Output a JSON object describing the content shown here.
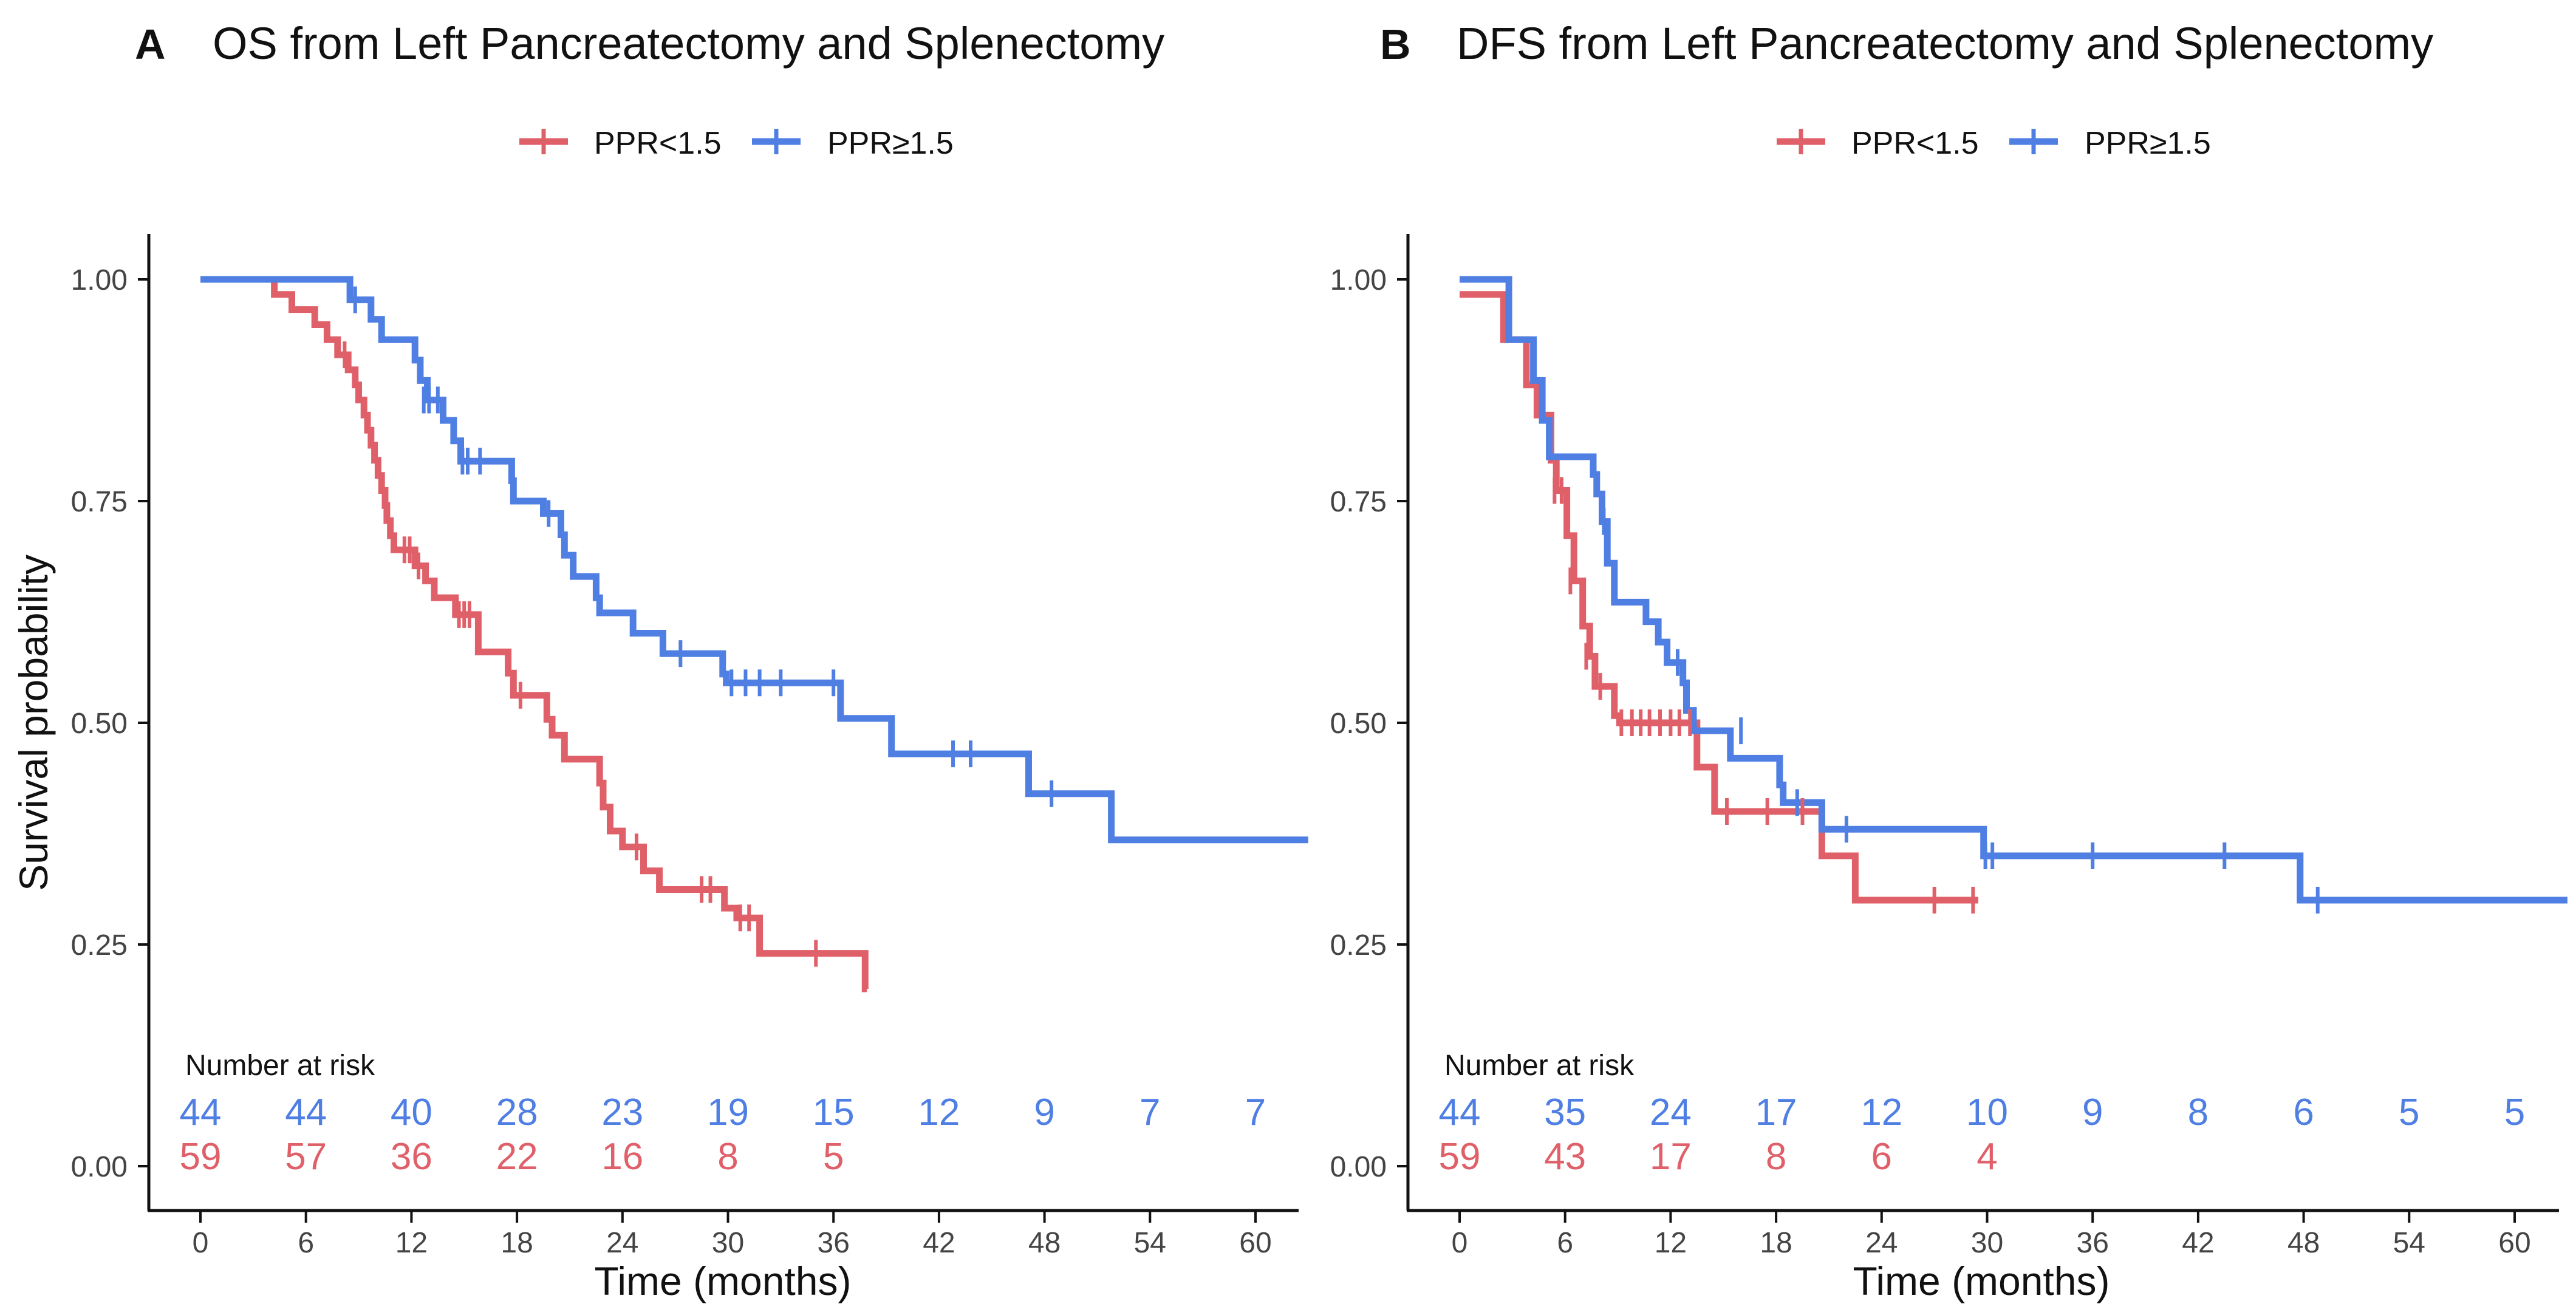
{
  "colors": {
    "low": "#E0606A",
    "high": "#4F7FE3",
    "axis": "#111111",
    "text": "#111111",
    "tick": "#444444"
  },
  "chart_data": [
    {
      "type": "line",
      "panel": "A",
      "title": "OS from Left Pancreatectomy and Splenectomy",
      "xlabel": "Time (months)",
      "ylabel": "Survival probability",
      "xlim": [
        -3,
        63
      ],
      "ylim": [
        0,
        1
      ],
      "xticks": [
        "0",
        "6",
        "12",
        "18",
        "24",
        "30",
        "36",
        "42",
        "48",
        "54",
        "60"
      ],
      "yticks": [
        "0.00",
        "0.25",
        "0.50",
        "0.75",
        "1.00"
      ],
      "legend_position": "top-center",
      "risk_title": "Number at risk",
      "series": [
        {
          "name": "PPR<1.5",
          "color_key": "low",
          "steps": [
            [
              0,
              1.0
            ],
            [
              4.2,
              0.983
            ],
            [
              5.2,
              0.966
            ],
            [
              6.5,
              0.949
            ],
            [
              7.2,
              0.932
            ],
            [
              7.8,
              0.915
            ],
            [
              8.4,
              0.898
            ],
            [
              8.8,
              0.881
            ],
            [
              9.0,
              0.864
            ],
            [
              9.3,
              0.847
            ],
            [
              9.5,
              0.83
            ],
            [
              9.7,
              0.813
            ],
            [
              9.9,
              0.796
            ],
            [
              10.1,
              0.779
            ],
            [
              10.3,
              0.762
            ],
            [
              10.5,
              0.745
            ],
            [
              10.6,
              0.728
            ],
            [
              10.8,
              0.711
            ],
            [
              11.0,
              0.695
            ],
            [
              12.2,
              0.677
            ],
            [
              12.8,
              0.66
            ],
            [
              13.3,
              0.641
            ],
            [
              14.5,
              0.622
            ],
            [
              15.8,
              0.58
            ],
            [
              17.5,
              0.556
            ],
            [
              17.8,
              0.531
            ],
            [
              19.7,
              0.504
            ],
            [
              20.0,
              0.486
            ],
            [
              20.7,
              0.459
            ],
            [
              22.7,
              0.432
            ],
            [
              22.9,
              0.405
            ],
            [
              23.3,
              0.378
            ],
            [
              24.0,
              0.36
            ],
            [
              25.2,
              0.333
            ],
            [
              26.1,
              0.312
            ],
            [
              29.8,
              0.291
            ],
            [
              30.5,
              0.28
            ],
            [
              31.8,
              0.24
            ],
            [
              37.8,
              0.2
            ]
          ],
          "end_x": 37.9,
          "censors": [
            [
              8.2,
              0.915
            ],
            [
              11.6,
              0.695
            ],
            [
              11.9,
              0.695
            ],
            [
              12.4,
              0.677
            ],
            [
              14.7,
              0.622
            ],
            [
              15.0,
              0.622
            ],
            [
              15.3,
              0.622
            ],
            [
              18.2,
              0.531
            ],
            [
              24.8,
              0.36
            ],
            [
              28.5,
              0.312
            ],
            [
              29.0,
              0.312
            ],
            [
              30.7,
              0.28
            ],
            [
              31.2,
              0.28
            ],
            [
              35.0,
              0.24
            ]
          ],
          "at_risk": [
            {
              "time": "0",
              "n": "59"
            },
            {
              "time": "6",
              "n": "57"
            },
            {
              "time": "12",
              "n": "36"
            },
            {
              "time": "18",
              "n": "22"
            },
            {
              "time": "24",
              "n": "16"
            },
            {
              "time": "30",
              "n": "8"
            },
            {
              "time": "36",
              "n": "5"
            }
          ]
        },
        {
          "name": "PPR≥1.5",
          "color_key": "high",
          "steps": [
            [
              0,
              1.0
            ],
            [
              8.5,
              0.977
            ],
            [
              9.7,
              0.955
            ],
            [
              10.3,
              0.932
            ],
            [
              12.2,
              0.909
            ],
            [
              12.5,
              0.886
            ],
            [
              12.9,
              0.864
            ],
            [
              13.8,
              0.841
            ],
            [
              14.4,
              0.818
            ],
            [
              14.8,
              0.795
            ],
            [
              17.7,
              0.773
            ],
            [
              17.8,
              0.75
            ],
            [
              19.5,
              0.736
            ],
            [
              20.5,
              0.712
            ],
            [
              20.7,
              0.689
            ],
            [
              21.2,
              0.665
            ],
            [
              22.5,
              0.641
            ],
            [
              22.7,
              0.624
            ],
            [
              24.6,
              0.601
            ],
            [
              26.3,
              0.578
            ],
            [
              29.7,
              0.555
            ],
            [
              29.9,
              0.545
            ],
            [
              36.4,
              0.505
            ],
            [
              39.3,
              0.465
            ],
            [
              47.1,
              0.42
            ],
            [
              51.8,
              0.368
            ]
          ],
          "end_x": 63,
          "censors": [
            [
              8.8,
              0.977
            ],
            [
              12.7,
              0.864
            ],
            [
              13.0,
              0.864
            ],
            [
              13.5,
              0.864
            ],
            [
              14.9,
              0.795
            ],
            [
              15.2,
              0.795
            ],
            [
              15.9,
              0.795
            ],
            [
              19.8,
              0.736
            ],
            [
              27.3,
              0.578
            ],
            [
              30.2,
              0.545
            ],
            [
              31.0,
              0.545
            ],
            [
              31.8,
              0.545
            ],
            [
              33.0,
              0.545
            ],
            [
              36.0,
              0.545
            ],
            [
              42.8,
              0.465
            ],
            [
              43.8,
              0.465
            ],
            [
              48.4,
              0.42
            ]
          ],
          "at_risk": [
            {
              "time": "0",
              "n": "44"
            },
            {
              "time": "6",
              "n": "44"
            },
            {
              "time": "12",
              "n": "40"
            },
            {
              "time": "18",
              "n": "28"
            },
            {
              "time": "24",
              "n": "23"
            },
            {
              "time": "30",
              "n": "19"
            },
            {
              "time": "36",
              "n": "15"
            },
            {
              "time": "42",
              "n": "12"
            },
            {
              "time": "48",
              "n": "9"
            },
            {
              "time": "54",
              "n": "7"
            },
            {
              "time": "60",
              "n": "7"
            }
          ]
        }
      ]
    },
    {
      "type": "line",
      "panel": "B",
      "title": "DFS from Left Pancreatectomy and Splenectomy",
      "xlabel": "Time (months)",
      "ylabel": "",
      "xlim": [
        -3,
        63
      ],
      "ylim": [
        0,
        1
      ],
      "xticks": [
        "0",
        "6",
        "12",
        "18",
        "24",
        "30",
        "36",
        "42",
        "48",
        "54",
        "60"
      ],
      "yticks": [
        "0.00",
        "0.25",
        "0.50",
        "0.75",
        "1.00"
      ],
      "legend_position": "top-center",
      "risk_title": "Number at risk",
      "series": [
        {
          "name": "PPR<1.5",
          "color_key": "low",
          "steps": [
            [
              0,
              0.983
            ],
            [
              2.5,
              0.932
            ],
            [
              3.8,
              0.881
            ],
            [
              4.4,
              0.847
            ],
            [
              5.2,
              0.796
            ],
            [
              5.5,
              0.762
            ],
            [
              6.1,
              0.711
            ],
            [
              6.5,
              0.66
            ],
            [
              7.0,
              0.609
            ],
            [
              7.4,
              0.575
            ],
            [
              7.7,
              0.541
            ],
            [
              8.8,
              0.508
            ],
            [
              9.1,
              0.5
            ],
            [
              13.5,
              0.45
            ],
            [
              14.5,
              0.4
            ],
            [
              20.6,
              0.35
            ],
            [
              22.5,
              0.3
            ]
          ],
          "end_x": 29.5,
          "censors": [
            [
              5.4,
              0.762
            ],
            [
              5.8,
              0.762
            ],
            [
              6.3,
              0.66
            ],
            [
              7.2,
              0.575
            ],
            [
              8.0,
              0.541
            ],
            [
              9.2,
              0.5
            ],
            [
              9.8,
              0.5
            ],
            [
              10.3,
              0.5
            ],
            [
              10.8,
              0.5
            ],
            [
              11.4,
              0.5
            ],
            [
              12.0,
              0.5
            ],
            [
              12.5,
              0.5
            ],
            [
              13.1,
              0.5
            ],
            [
              15.2,
              0.4
            ],
            [
              17.5,
              0.4
            ],
            [
              19.5,
              0.4
            ],
            [
              27.0,
              0.3
            ],
            [
              29.2,
              0.3
            ]
          ],
          "at_risk": [
            {
              "time": "0",
              "n": "59"
            },
            {
              "time": "6",
              "n": "43"
            },
            {
              "time": "12",
              "n": "17"
            },
            {
              "time": "18",
              "n": "8"
            },
            {
              "time": "24",
              "n": "6"
            },
            {
              "time": "30",
              "n": "4"
            }
          ]
        },
        {
          "name": "PPR≥1.5",
          "color_key": "high",
          "steps": [
            [
              0,
              1.0
            ],
            [
              2.8,
              0.932
            ],
            [
              4.2,
              0.886
            ],
            [
              4.7,
              0.841
            ],
            [
              5.1,
              0.8
            ],
            [
              7.6,
              0.78
            ],
            [
              7.8,
              0.758
            ],
            [
              8.1,
              0.727
            ],
            [
              8.4,
              0.68
            ],
            [
              8.8,
              0.636
            ],
            [
              10.6,
              0.614
            ],
            [
              11.3,
              0.591
            ],
            [
              11.8,
              0.568
            ],
            [
              12.7,
              0.545
            ],
            [
              12.9,
              0.514
            ],
            [
              13.3,
              0.491
            ],
            [
              15.4,
              0.46
            ],
            [
              18.2,
              0.43
            ],
            [
              18.4,
              0.41
            ],
            [
              20.6,
              0.38
            ],
            [
              29.8,
              0.35
            ],
            [
              47.8,
              0.3
            ]
          ],
          "end_x": 63,
          "censors": [
            [
              8.2,
              0.727
            ],
            [
              12.4,
              0.568
            ],
            [
              16.0,
              0.491
            ],
            [
              19.2,
              0.41
            ],
            [
              22.0,
              0.38
            ],
            [
              29.9,
              0.35
            ],
            [
              30.3,
              0.35
            ],
            [
              36.0,
              0.35
            ],
            [
              43.5,
              0.35
            ],
            [
              48.8,
              0.3
            ]
          ],
          "at_risk": [
            {
              "time": "0",
              "n": "44"
            },
            {
              "time": "6",
              "n": "35"
            },
            {
              "time": "12",
              "n": "24"
            },
            {
              "time": "18",
              "n": "17"
            },
            {
              "time": "24",
              "n": "12"
            },
            {
              "time": "30",
              "n": "10"
            },
            {
              "time": "36",
              "n": "9"
            },
            {
              "time": "42",
              "n": "8"
            },
            {
              "time": "48",
              "n": "6"
            },
            {
              "time": "54",
              "n": "5"
            },
            {
              "time": "60",
              "n": "5"
            }
          ]
        }
      ]
    }
  ]
}
